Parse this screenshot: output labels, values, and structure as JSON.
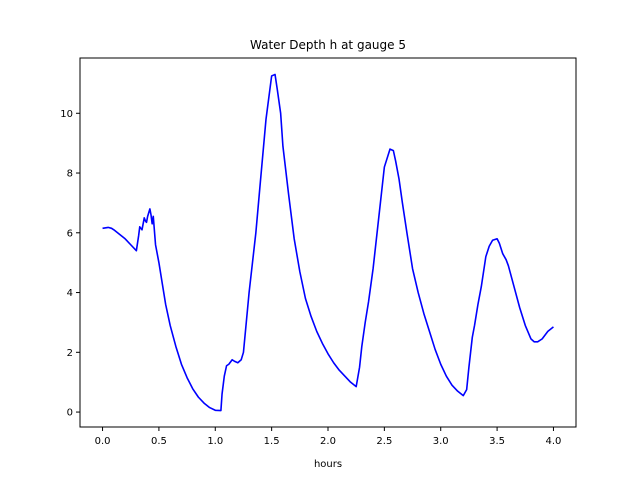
{
  "chart_data": {
    "type": "line",
    "title": "Water Depth h at gauge 5",
    "xlabel": "hours",
    "ylabel": "",
    "xlim": [
      -0.2,
      4.2
    ],
    "ylim": [
      -0.5,
      11.85
    ],
    "grid": false,
    "x_ticks": [
      0.0,
      0.5,
      1.0,
      1.5,
      2.0,
      2.5,
      3.0,
      3.5,
      4.0
    ],
    "x_tick_labels": [
      "0.0",
      "0.5",
      "1.0",
      "1.5",
      "2.0",
      "2.5",
      "3.0",
      "3.5",
      "4.0"
    ],
    "y_ticks": [
      0,
      2,
      4,
      6,
      8,
      10
    ],
    "y_tick_labels": [
      "0",
      "2",
      "4",
      "6",
      "8",
      "10"
    ],
    "series": [
      {
        "color": "#0000ff",
        "x": [
          0.0,
          0.05,
          0.08,
          0.1,
          0.15,
          0.2,
          0.25,
          0.3,
          0.32,
          0.33,
          0.35,
          0.37,
          0.38,
          0.39,
          0.4,
          0.42,
          0.43,
          0.44,
          0.45,
          0.47,
          0.5,
          0.53,
          0.56,
          0.6,
          0.65,
          0.7,
          0.75,
          0.8,
          0.85,
          0.9,
          0.95,
          1.0,
          1.05,
          1.06,
          1.08,
          1.1,
          1.12,
          1.15,
          1.17,
          1.2,
          1.23,
          1.25,
          1.27,
          1.3,
          1.33,
          1.36,
          1.4,
          1.45,
          1.5,
          1.53,
          1.55,
          1.58,
          1.6,
          1.65,
          1.7,
          1.75,
          1.8,
          1.85,
          1.9,
          1.95,
          2.0,
          2.05,
          2.1,
          2.15,
          2.2,
          2.25,
          2.28,
          2.3,
          2.33,
          2.36,
          2.4,
          2.45,
          2.5,
          2.55,
          2.58,
          2.6,
          2.63,
          2.66,
          2.7,
          2.75,
          2.8,
          2.85,
          2.9,
          2.95,
          3.0,
          3.05,
          3.1,
          3.15,
          3.2,
          3.23,
          3.25,
          3.28,
          3.3,
          3.33,
          3.36,
          3.4,
          3.43,
          3.46,
          3.5,
          3.52,
          3.55,
          3.58,
          3.6,
          3.65,
          3.7,
          3.75,
          3.8,
          3.83,
          3.86,
          3.9,
          3.95,
          4.0
        ],
        "y": [
          6.15,
          6.18,
          6.15,
          6.1,
          5.95,
          5.8,
          5.6,
          5.4,
          5.9,
          6.2,
          6.1,
          6.5,
          6.4,
          6.35,
          6.55,
          6.8,
          6.6,
          6.3,
          6.55,
          5.6,
          5.0,
          4.3,
          3.6,
          2.9,
          2.2,
          1.6,
          1.15,
          0.78,
          0.5,
          0.3,
          0.15,
          0.06,
          0.05,
          0.6,
          1.2,
          1.55,
          1.6,
          1.75,
          1.7,
          1.65,
          1.75,
          2.0,
          2.8,
          4.0,
          5.0,
          6.0,
          7.7,
          9.8,
          11.25,
          11.3,
          10.8,
          10.0,
          8.9,
          7.3,
          5.8,
          4.7,
          3.8,
          3.2,
          2.7,
          2.3,
          1.95,
          1.65,
          1.4,
          1.2,
          1.0,
          0.85,
          1.5,
          2.2,
          3.0,
          3.7,
          4.8,
          6.5,
          8.2,
          8.8,
          8.75,
          8.4,
          7.8,
          7.0,
          6.0,
          4.8,
          4.0,
          3.3,
          2.7,
          2.1,
          1.6,
          1.2,
          0.9,
          0.7,
          0.55,
          0.75,
          1.5,
          2.5,
          2.9,
          3.6,
          4.2,
          5.2,
          5.55,
          5.75,
          5.8,
          5.65,
          5.3,
          5.1,
          4.9,
          4.2,
          3.5,
          2.9,
          2.45,
          2.35,
          2.35,
          2.45,
          2.7,
          2.85
        ]
      }
    ]
  }
}
